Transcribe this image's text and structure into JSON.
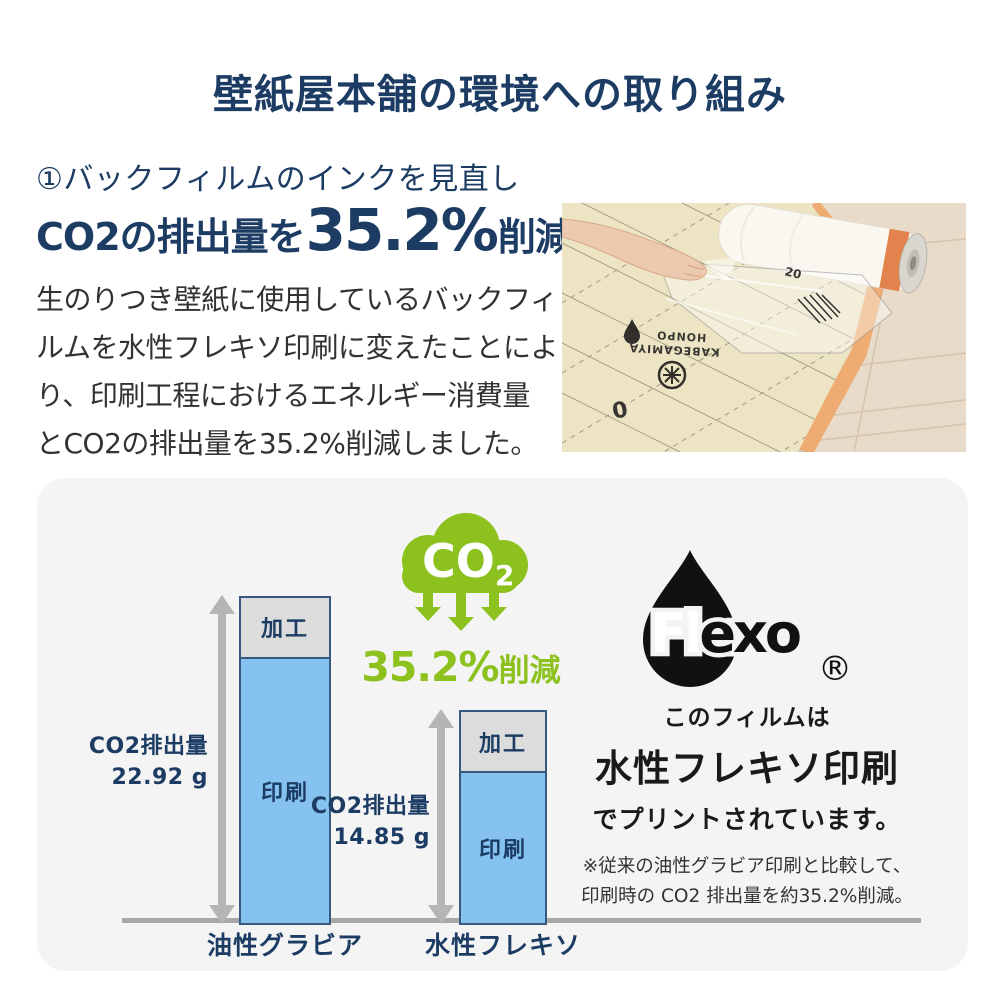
{
  "title": "壁紙屋本舗の環境への取り組み",
  "intro": {
    "heading": "①バックフィルムのインクを見直し",
    "highlight_prefix": "CO2の排出量を",
    "highlight_percent": "35.2%",
    "highlight_suffix": "削減",
    "body_lines": [
      "生のりつき壁紙に使用しているバックフィ",
      "ルムを水性フレキソ印刷に変えたことによ",
      "り、印刷工程におけるエネルギー消費量",
      "とCO2の排出量を35.2%削減しました。"
    ]
  },
  "photo": {
    "film_print_lines": [
      "KABEGAMIYA",
      "HONPO"
    ],
    "ruler_marks": [
      "20",
      "0"
    ]
  },
  "badge": {
    "cloud_text": "CO",
    "cloud_sub": "2",
    "reduction_percent": "35.2%",
    "reduction_suffix": "削減"
  },
  "chart_data": {
    "type": "bar",
    "stacked": true,
    "categories": [
      "油性グラビア",
      "水性フレキソ"
    ],
    "series": [
      {
        "name": "印刷",
        "values": [
          18.62,
          10.55
        ],
        "color": "#85c2ef"
      },
      {
        "name": "加工",
        "values": [
          4.3,
          4.3
        ],
        "color": "#dcdcdc"
      }
    ],
    "totals": [
      {
        "label": "CO2排出量",
        "value": "22.92 g",
        "total": 22.92
      },
      {
        "label": "CO2排出量",
        "value": "14.85 g",
        "total": 14.85
      }
    ],
    "unit": "g",
    "ylim": [
      0,
      24
    ],
    "grid": false,
    "legend": "none"
  },
  "flexo": {
    "logo_text_white": "Fl",
    "logo_text_black": "exo",
    "registered_mark": "®",
    "line1": "このフィルムは",
    "line2": "水性フレキソ印刷",
    "line3": "でプリントされています。",
    "notes": [
      "※従来の油性グラビア印刷と比較して、",
      "印刷時の CO2 排出量を約35.2%削減。"
    ]
  },
  "colors": {
    "navy": "#1c3c64",
    "text": "#323232",
    "green": "#8cc11e",
    "bar_blue": "#85c2ef",
    "bar_gray": "#dcdcdc",
    "bar_border": "#35597f",
    "measure_gray": "#b5b5b5",
    "axis_gray": "#a8a8a8",
    "panel_bg": "#f4f4f4",
    "black": "#111111"
  }
}
